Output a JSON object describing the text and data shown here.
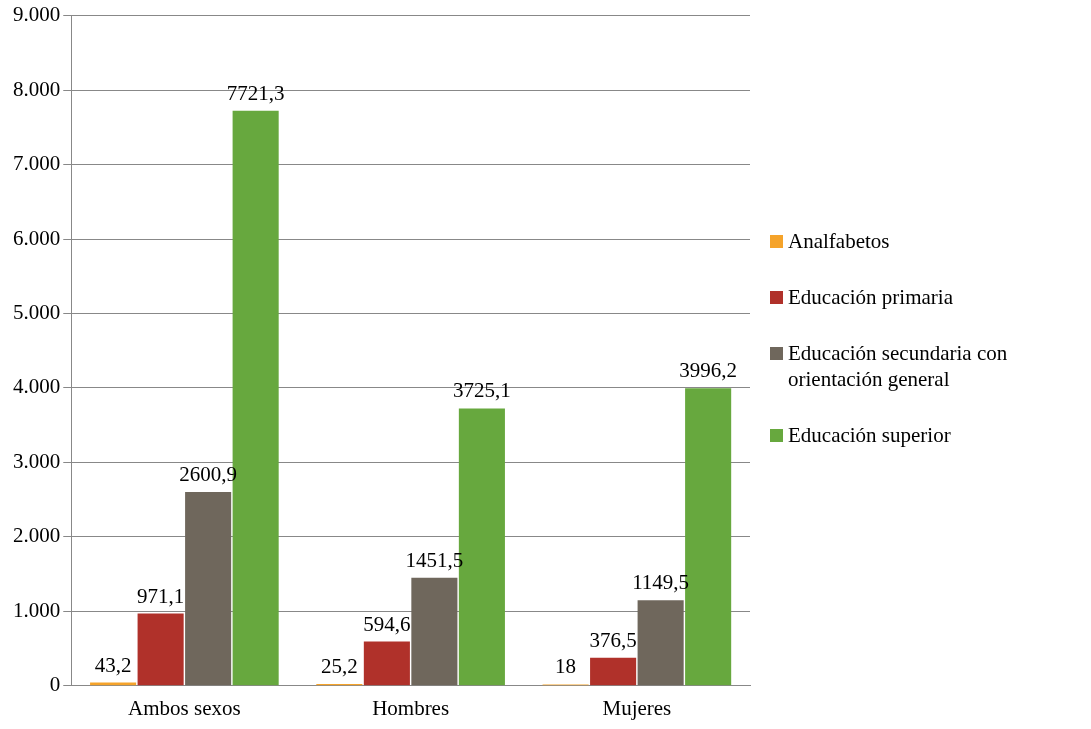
{
  "chart_data": {
    "type": "bar",
    "categories": [
      "Ambos sexos",
      "Hombres",
      "Mujeres"
    ],
    "series": [
      {
        "name": "Analfabetos",
        "color": "#f5a32a",
        "values": [
          43.2,
          25.2,
          18
        ],
        "value_labels": [
          "43,2",
          "25,2",
          "18"
        ]
      },
      {
        "name": "Educación primaria",
        "color": "#b0312a",
        "values": [
          971.1,
          594.6,
          376.5
        ],
        "value_labels": [
          "971,1",
          "594,6",
          "376,5"
        ]
      },
      {
        "name": "Educación secundaria con orientación general",
        "color": "#6f675c",
        "values": [
          2600.9,
          1451.5,
          1149.5
        ],
        "value_labels": [
          "2600,9",
          "1451,5",
          "1149,5"
        ]
      },
      {
        "name": "Educación superior",
        "color": "#67a83e",
        "values": [
          7721.3,
          3725.1,
          3996.2
        ],
        "value_labels": [
          "7721,3",
          "3725,1",
          "3996,2"
        ]
      }
    ],
    "ylim": [
      0,
      9000
    ],
    "yticks": [
      0,
      {
        "value": 1000,
        "label": "1.000"
      },
      {
        "value": 2000,
        "label": "2.000"
      },
      {
        "value": 3000,
        "label": "3.000"
      },
      {
        "value": 4000,
        "label": "4.000"
      },
      {
        "value": 5000,
        "label": "5.000"
      },
      {
        "value": 6000,
        "label": "6.000"
      },
      {
        "value": 7000,
        "label": "7.000"
      },
      {
        "value": 8000,
        "label": "8.000"
      },
      {
        "value": 9000,
        "label": "9.000"
      }
    ],
    "grid": "y",
    "legend": "right"
  }
}
